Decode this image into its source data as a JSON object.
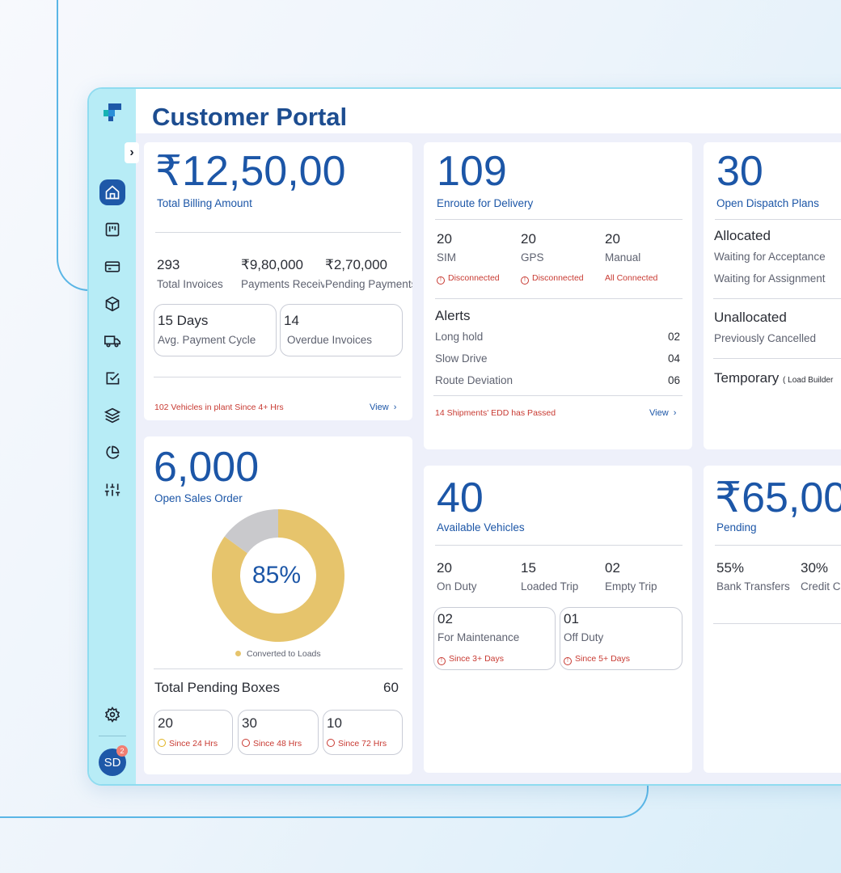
{
  "app": {
    "title": "Customer Portal",
    "user_initials": "SD",
    "notification_count": "2"
  },
  "billing": {
    "amount": "₹12,50,00",
    "label": "Total Billing Amount",
    "invoices_value": "293",
    "invoices_label": "Total Invoices",
    "received_value": "₹9,80,000",
    "received_label": "Payments Received",
    "pending_value": "₹2,70,000",
    "pending_label": "Pending Payments",
    "cycle_value": "15 Days",
    "cycle_label": "Avg. Payment Cycle",
    "overdue_value": "14",
    "overdue_label": "Overdue Invoices",
    "footer_alert": "102 Vehicles in plant Since 4+ Hrs",
    "view": "View"
  },
  "enroute": {
    "count": "109",
    "label": "Enroute for Delivery",
    "sim_value": "20",
    "sim_label": "SIM",
    "sim_status": "Disconnected",
    "gps_value": "20",
    "gps_label": "GPS",
    "gps_status": "Disconnected",
    "manual_value": "20",
    "manual_label": "Manual",
    "manual_status": "All Connected",
    "alerts_title": "Alerts",
    "alerts": [
      {
        "label": "Long hold",
        "value": "02"
      },
      {
        "label": "Slow Drive",
        "value": "04"
      },
      {
        "label": "Route Deviation",
        "value": "06"
      }
    ],
    "footer_alert": "14 Shipments' EDD has Passed",
    "view": "View"
  },
  "dispatch": {
    "count": "30",
    "label": "Open Dispatch Plans",
    "allocated_title": "Allocated",
    "allocated_items": [
      "Waiting for Acceptance",
      "Waiting for Assignment"
    ],
    "unallocated_title": "Unallocated",
    "unallocated_items": [
      "Previously Cancelled"
    ],
    "temporary_title": "Temporary",
    "temporary_note": "( Load Builder"
  },
  "sales": {
    "count": "6,000",
    "label": "Open Sales Order",
    "donut_percent": "85%",
    "legend": "Converted to Loads",
    "pending_boxes_label": "Total Pending Boxes",
    "pending_boxes_value": "60",
    "buckets": [
      {
        "value": "20",
        "since": "Since 24 Hrs"
      },
      {
        "value": "30",
        "since": "Since 48 Hrs"
      },
      {
        "value": "10",
        "since": "Since 72 Hrs"
      }
    ]
  },
  "vehicles": {
    "count": "40",
    "label": "Available Vehicles",
    "on_duty_value": "20",
    "on_duty_label": "On Duty",
    "loaded_value": "15",
    "loaded_label": "Loaded Trip",
    "empty_value": "02",
    "empty_label": "Empty Trip",
    "maint_value": "02",
    "maint_label": "For Maintenance",
    "maint_since": "Since 3+ Days",
    "off_value": "01",
    "off_label": "Off Duty",
    "off_since": "Since 5+ Days"
  },
  "pending": {
    "amount": "₹65,00",
    "label": "Pending",
    "bank_value": "55%",
    "bank_label": "Bank Transfers",
    "credit_value": "30%",
    "credit_label": "Credit Card"
  },
  "chart_data": {
    "type": "pie",
    "title": "Open Sales Order",
    "categories": [
      "Converted to Loads",
      "Remaining"
    ],
    "values": [
      85,
      15
    ],
    "center_label": "85%"
  },
  "colors": {
    "accent": "#1c56a7",
    "sidebar": "#b7ecf6",
    "donut_fill": "#e6c46c",
    "donut_rest": "#c9c9cc",
    "alert": "#c83a32"
  }
}
